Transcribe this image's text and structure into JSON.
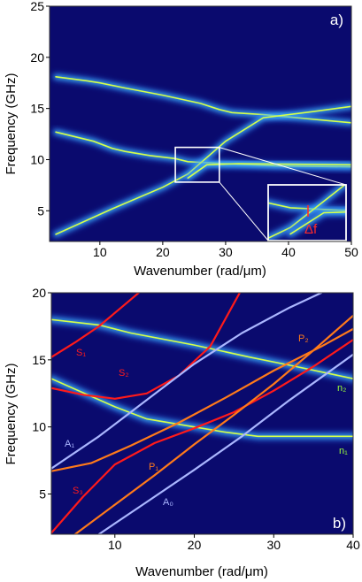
{
  "chart_data": [
    {
      "type": "heatmap",
      "panel_label": "a)",
      "xlabel": "Wavenumber (rad/μm)",
      "ylabel": "Frequency (GHz)",
      "xlim": [
        2,
        50
      ],
      "ylim": [
        2,
        25
      ],
      "xticks": [
        10,
        20,
        30,
        40,
        50
      ],
      "yticks": [
        5,
        10,
        15,
        20,
        25
      ],
      "colors": {
        "background": "#0a0a6e",
        "band_glow": "#2f7dff",
        "band_core": "#d6ff4a"
      },
      "bands": [
        {
          "x": [
            3,
            8,
            10,
            14,
            20,
            26,
            29,
            31,
            36,
            43,
            50
          ],
          "y": [
            18.1,
            17.7,
            17.5,
            17.0,
            16.3,
            15.5,
            14.9,
            14.6,
            14.4,
            14.0,
            13.6
          ]
        },
        {
          "x": [
            3,
            9,
            12,
            14,
            18,
            22,
            24,
            30,
            38,
            50
          ],
          "y": [
            12.7,
            11.8,
            11.1,
            10.8,
            10.4,
            10.1,
            9.8,
            9.6,
            9.4,
            9.3
          ]
        },
        {
          "x": [
            3,
            12,
            20,
            24,
            27,
            30,
            36,
            44,
            50
          ],
          "y": [
            2.7,
            5.2,
            7.3,
            8.6,
            10.2,
            11.8,
            14.1,
            14.7,
            15.2
          ]
        },
        {
          "x": [
            24,
            27,
            32,
            50
          ],
          "y": [
            8.2,
            9.5,
            9.6,
            9.5
          ]
        }
      ],
      "zoom_box": {
        "x": [
          22,
          29
        ],
        "y": [
          7.8,
          11.2
        ]
      },
      "inset_annotation": "Δf"
    },
    {
      "type": "line",
      "panel_label": "b)",
      "xlabel": "Wavenumber (rad/μm)",
      "ylabel": "Frequency (GHz)",
      "xlim": [
        2,
        40
      ],
      "ylim": [
        2,
        20
      ],
      "xticks": [
        10,
        20,
        30,
        40
      ],
      "yticks": [
        5,
        10,
        15,
        20
      ],
      "background_bands": [
        {
          "x": [
            2,
            8,
            12,
            20,
            27,
            32,
            40
          ],
          "y": [
            18.0,
            17.6,
            17.0,
            16.1,
            15.2,
            14.6,
            13.6
          ]
        },
        {
          "x": [
            2,
            10,
            14,
            20,
            24,
            28,
            40
          ],
          "y": [
            13.6,
            11.5,
            10.6,
            10.0,
            9.6,
            9.3,
            9.3
          ]
        }
      ],
      "series": [
        {
          "name": "S₁",
          "color": "#ff1a1a",
          "x": [
            2,
            5,
            8,
            11,
            14
          ],
          "y": [
            15.2,
            16.3,
            17.5,
            19.0,
            20.5
          ]
        },
        {
          "name": "S₂",
          "color": "#ff1a1a",
          "x": [
            2,
            6,
            10,
            14,
            18,
            22,
            26
          ],
          "y": [
            12.9,
            12.4,
            12.1,
            12.5,
            13.8,
            16.0,
            20.3
          ]
        },
        {
          "name": "S₃",
          "color": "#ff1a1a",
          "x": [
            2,
            6,
            10,
            15,
            20,
            25,
            30,
            35,
            40
          ],
          "y": [
            2.1,
            4.8,
            7.2,
            8.8,
            9.9,
            11.1,
            12.7,
            14.5,
            16.5
          ]
        },
        {
          "name": "A₁",
          "color": "#aab6ff",
          "x": [
            2,
            8,
            14,
            20,
            26,
            32,
            36
          ],
          "y": [
            6.9,
            9.3,
            12.0,
            14.7,
            17.0,
            18.9,
            20.0
          ]
        },
        {
          "name": "A₀",
          "color": "#aab6ff",
          "x": [
            8,
            14,
            20,
            26,
            32,
            40
          ],
          "y": [
            2.0,
            4.4,
            6.8,
            9.3,
            12.0,
            15.4
          ]
        },
        {
          "name": "P₁",
          "color": "#ff7a1a",
          "x": [
            2,
            7,
            12,
            18,
            24,
            30,
            36,
            40
          ],
          "y": [
            6.7,
            7.3,
            8.6,
            10.3,
            12.2,
            14.2,
            16.0,
            17.3
          ]
        },
        {
          "name": "P₂",
          "color": "#ff7a1a",
          "x": [
            5,
            10,
            15,
            20,
            25,
            30,
            35,
            40
          ],
          "y": [
            2.0,
            4.2,
            6.4,
            8.7,
            10.9,
            13.2,
            15.7,
            18.3
          ]
        }
      ],
      "band_labels": [
        "n₂",
        "n₁"
      ]
    }
  ]
}
